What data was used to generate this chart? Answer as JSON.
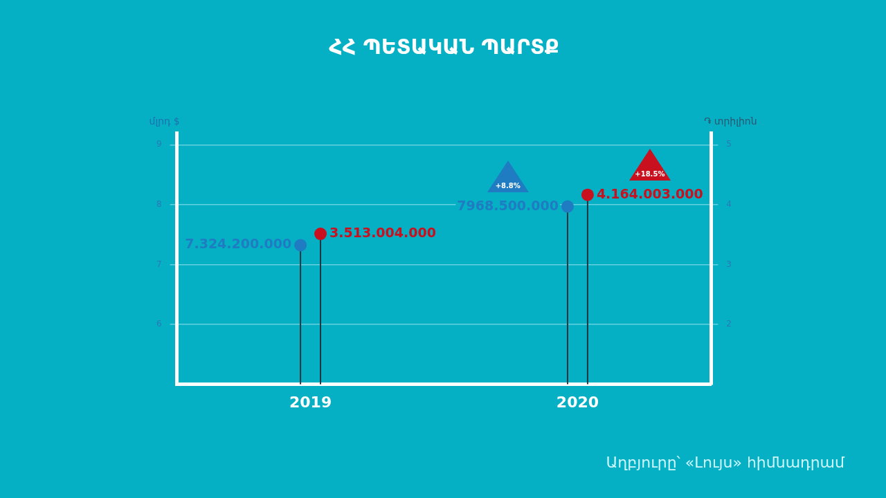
{
  "chart_data": {
    "type": "lollipop",
    "title": "ՀՀ ՊԵՏԱԿԱՆ ՊԱՐՏՔ",
    "ylabel": "մլրդ $",
    "y2label": "֏ տրիլիոն",
    "categories": [
      "2019",
      "2020"
    ],
    "series": [
      {
        "color": "#1f7cc2",
        "values": [
          7.3242,
          7.9685
        ]
      },
      {
        "color": "#c8101e",
        "axis": "y2",
        "values": [
          3.513004,
          4.164003
        ]
      }
    ],
    "ylim": [
      5,
      9.2
    ],
    "yticks": [
      6,
      7,
      8,
      9
    ],
    "y2lim": [
      1,
      5.2
    ],
    "y2ticks": [
      2,
      3,
      4,
      5
    ],
    "grid": "y",
    "marker": "circle",
    "annotations": [
      "7.324.200.000",
      "7968.500.000",
      "3.513.004.000",
      "4.164.003.000",
      "+8.8%",
      "+18.5%",
      "Աղբյուրը՝ «Լույս» հիմնադրամ"
    ]
  }
}
